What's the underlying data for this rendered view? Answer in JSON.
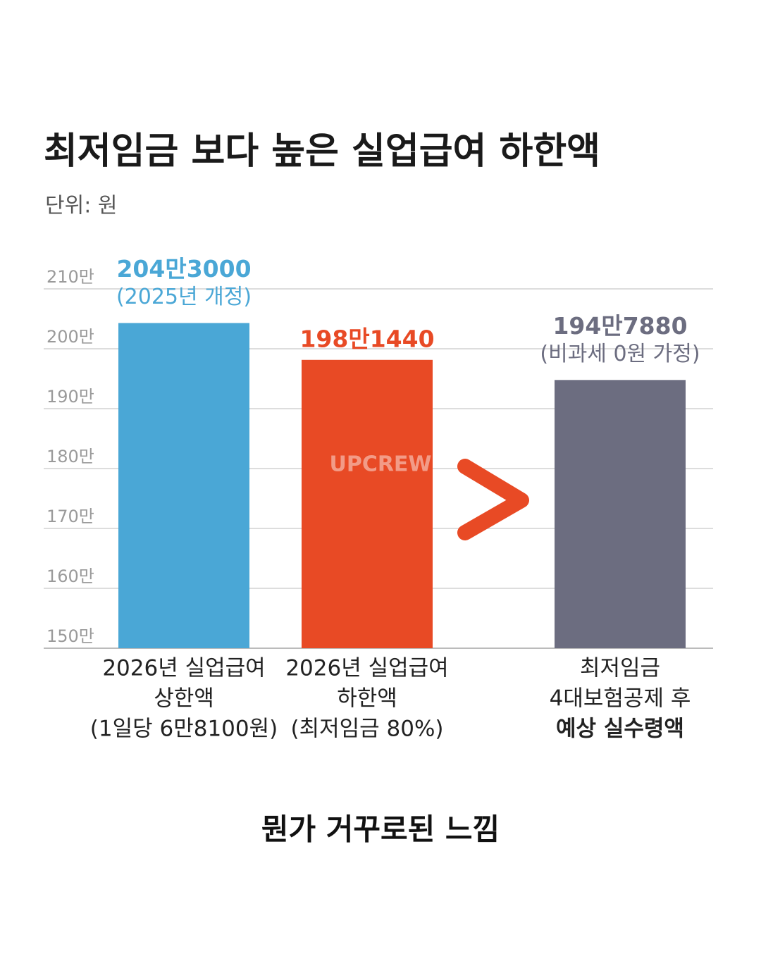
{
  "chart_data": {
    "type": "bar",
    "title": "최저임금 보다 높은 실업급여 하한액",
    "subtitle": "단위: 원",
    "categories": [
      [
        "2026년 실업급여",
        "상한액",
        "(1일당 6만8100원)"
      ],
      [
        "2026년 실업급여",
        "하한액",
        "(최저임금 80%)"
      ],
      [
        "최저임금",
        "4대보험공제 후",
        "예상 실수령액"
      ]
    ],
    "values": [
      2043000,
      1981440,
      1947880
    ],
    "value_labels": [
      "204만3000",
      "198만1440",
      "194만7880"
    ],
    "value_notes": [
      "(2025년 개정)",
      null,
      "(비과세 0원 가정)"
    ],
    "colors": [
      "#4aa7d6",
      "#e84a25",
      "#6c6d80"
    ],
    "ylim": [
      1500000,
      2100000
    ],
    "yticks": [
      {
        "value": 1500000,
        "label": "150만"
      },
      {
        "value": 1600000,
        "label": "160만"
      },
      {
        "value": 1700000,
        "label": "170만"
      },
      {
        "value": 1800000,
        "label": "180만"
      },
      {
        "value": 1900000,
        "label": "190만"
      },
      {
        "value": 2000000,
        "label": "200만"
      },
      {
        "value": 2100000,
        "label": "210만"
      }
    ],
    "grid": true,
    "watermark": "UPCREW",
    "caption": "뭔가 거꾸로된 느낌"
  }
}
